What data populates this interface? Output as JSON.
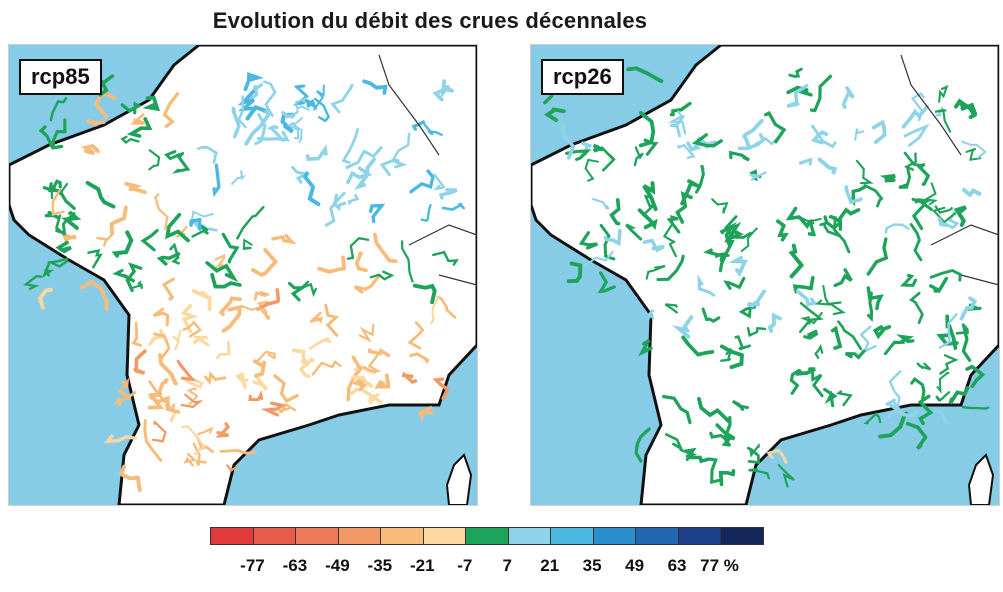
{
  "title": "Evolution du  débit des crues décennales",
  "panels": [
    {
      "label": "rcp85"
    },
    {
      "label": "rcp26"
    }
  ],
  "colors": {
    "sea": "#87cce6",
    "land": "#ffffff",
    "border": "#111111"
  },
  "legend": {
    "swatches": [
      "#e23a3a",
      "#e85a4a",
      "#ed7a5a",
      "#f29a66",
      "#f7bb7a",
      "#fbd9a0",
      "#1ea35a",
      "#8fd3e8",
      "#4ab8e0",
      "#2a8fcc",
      "#2066b0",
      "#1c3f8c",
      "#13275a"
    ],
    "tick_labels": [
      "-77",
      "-63",
      "-49",
      "-35",
      "-21",
      "-7",
      "7",
      "21",
      "35",
      "49",
      "63",
      "77 %"
    ]
  }
}
